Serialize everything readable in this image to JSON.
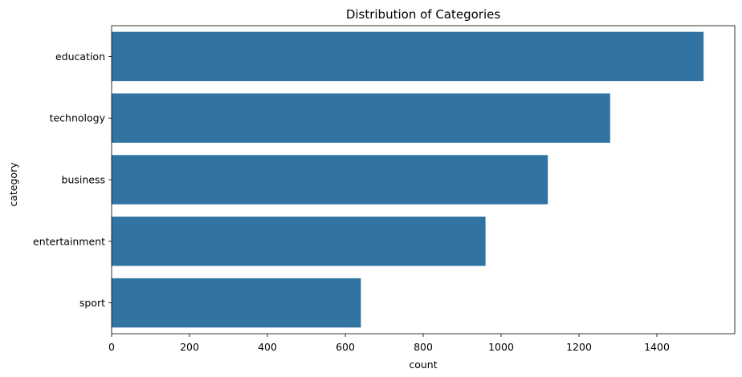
{
  "chart_data": {
    "type": "bar",
    "orientation": "horizontal",
    "title": "Distribution of Categories",
    "xlabel": "count",
    "ylabel": "category",
    "categories": [
      "education",
      "technology",
      "business",
      "entertainment",
      "sport"
    ],
    "values": [
      1520,
      1280,
      1120,
      960,
      640
    ],
    "xlim": [
      0,
      1600
    ],
    "xticks": [
      0,
      200,
      400,
      600,
      800,
      1000,
      1200,
      1400
    ],
    "grid": false,
    "bar_color": "#3274a1"
  }
}
